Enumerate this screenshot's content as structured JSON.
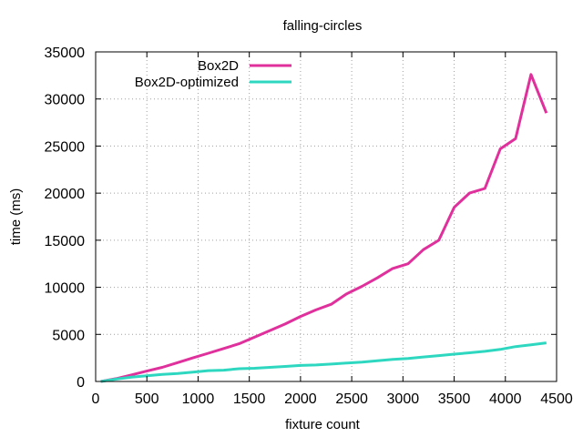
{
  "chart_data": {
    "type": "line",
    "title": "falling-circles",
    "xlabel": "fixture count",
    "ylabel": "time (ms)",
    "xlim": [
      0,
      4500
    ],
    "ylim": [
      0,
      35000
    ],
    "xticks": [
      0,
      500,
      1000,
      1500,
      2000,
      2500,
      3000,
      3500,
      4000,
      4500
    ],
    "yticks": [
      0,
      5000,
      10000,
      15000,
      20000,
      25000,
      30000,
      35000
    ],
    "grid": true,
    "legend_position": "top-left",
    "series": [
      {
        "name": "Box2D",
        "color": "#e0309c",
        "x": [
          50,
          200,
          350,
          500,
          650,
          800,
          950,
          1100,
          1250,
          1400,
          1550,
          1700,
          1850,
          2000,
          2150,
          2300,
          2450,
          2600,
          2750,
          2900,
          3050,
          3200,
          3350,
          3500,
          3650,
          3800,
          3950,
          4100,
          4250,
          4400
        ],
        "y": [
          0,
          300,
          700,
          1100,
          1500,
          2000,
          2500,
          3000,
          3500,
          4000,
          4700,
          5400,
          6100,
          6900,
          7600,
          8200,
          9300,
          10100,
          11000,
          12000,
          12500,
          14000,
          15000,
          18500,
          20000,
          20500,
          24700,
          25800,
          32600,
          28500
        ]
      },
      {
        "name": "Box2D-optimized",
        "color": "#2ed8c0",
        "x": [
          50,
          200,
          350,
          500,
          650,
          800,
          950,
          1100,
          1250,
          1400,
          1550,
          1700,
          1850,
          2000,
          2150,
          2300,
          2450,
          2600,
          2750,
          2900,
          3050,
          3200,
          3350,
          3500,
          3650,
          3800,
          3950,
          4100,
          4250,
          4400
        ],
        "y": [
          0,
          250,
          450,
          600,
          750,
          850,
          1000,
          1150,
          1200,
          1350,
          1400,
          1500,
          1600,
          1700,
          1750,
          1850,
          1950,
          2050,
          2200,
          2350,
          2450,
          2600,
          2750,
          2900,
          3050,
          3200,
          3400,
          3700,
          3900,
          4100
        ]
      }
    ]
  }
}
